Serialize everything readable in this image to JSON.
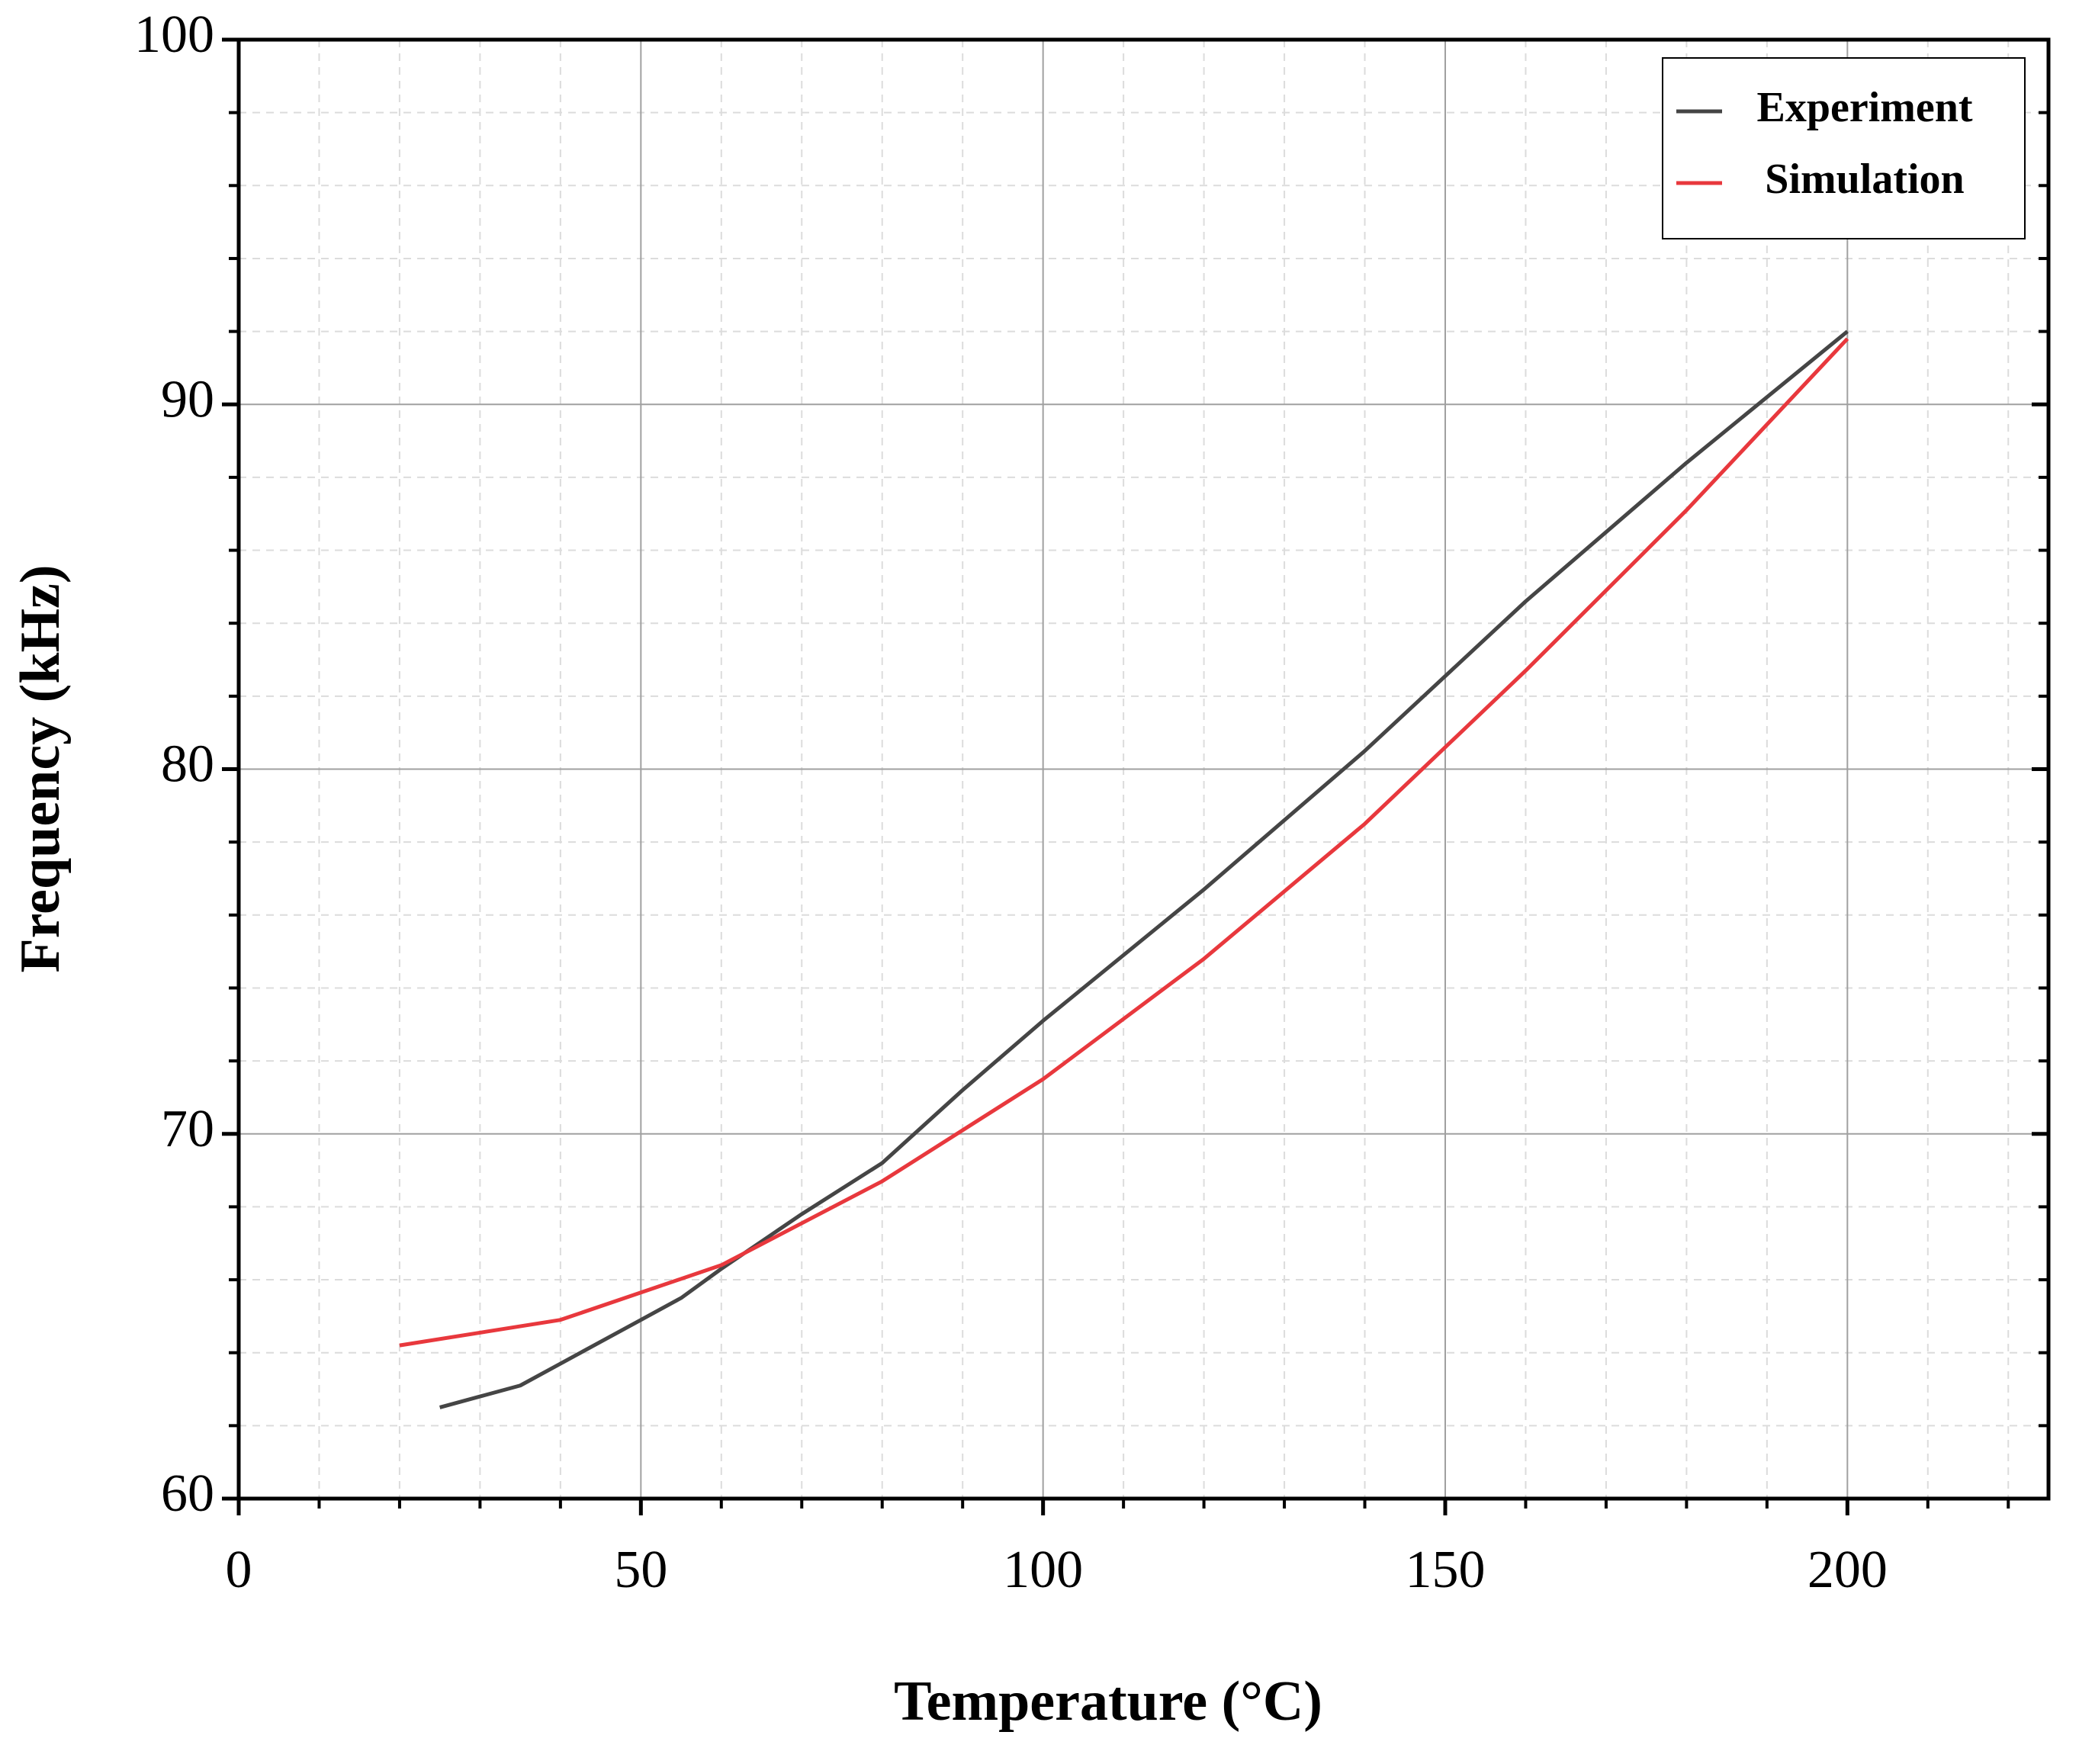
{
  "chart_data": {
    "type": "line",
    "x_label": "Temperature (°C)",
    "y_label": "Frequency (kHz)",
    "xlim": [
      0,
      225
    ],
    "xticks": [
      0,
      50,
      100,
      150,
      200
    ],
    "ylim": [
      60,
      100
    ],
    "yticks": [
      60,
      70,
      80,
      90,
      100
    ],
    "grid": true,
    "minor_divisions": 5,
    "legend": "upper right",
    "series": [
      {
        "name": "Experiment",
        "color": "#454545",
        "x": [
          25,
          30,
          35,
          40,
          50,
          55,
          60,
          70,
          80,
          90,
          100,
          120,
          140,
          160,
          180,
          200
        ],
        "values": [
          62.5,
          62.8,
          63.1,
          63.7,
          64.9,
          65.5,
          66.3,
          67.8,
          69.2,
          71.2,
          73.1,
          76.7,
          80.5,
          84.6,
          88.4,
          92.0
        ]
      },
      {
        "name": "Simulation",
        "color": "#e8383d",
        "x": [
          20,
          40,
          60,
          80,
          100,
          120,
          140,
          160,
          180,
          200
        ],
        "values": [
          64.2,
          64.9,
          66.4,
          68.7,
          71.5,
          74.8,
          78.5,
          82.7,
          87.1,
          91.8
        ]
      }
    ]
  }
}
